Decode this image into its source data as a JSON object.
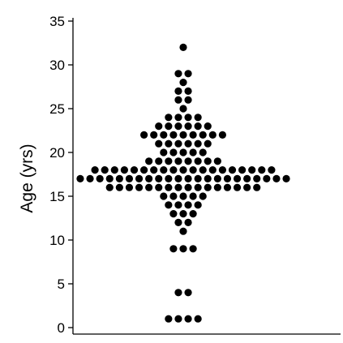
{
  "chart_data": {
    "type": "scatter",
    "style": "dot-plot",
    "title": "",
    "xlabel": "",
    "ylabel": "Age (yrs)",
    "ylim": [
      0,
      35
    ],
    "yticks": [
      0,
      5,
      10,
      15,
      20,
      25,
      30,
      35
    ],
    "grid": false,
    "legend": "none",
    "dot_color": "#000000",
    "value_counts": [
      {
        "age": 1,
        "count": 4
      },
      {
        "age": 4,
        "count": 2
      },
      {
        "age": 9,
        "count": 3
      },
      {
        "age": 11,
        "count": 1
      },
      {
        "age": 12,
        "count": 2
      },
      {
        "age": 13,
        "count": 3
      },
      {
        "age": 14,
        "count": 4
      },
      {
        "age": 15,
        "count": 5
      },
      {
        "age": 16,
        "count": 16
      },
      {
        "age": 17,
        "count": 22
      },
      {
        "age": 18,
        "count": 19
      },
      {
        "age": 19,
        "count": 8
      },
      {
        "age": 20,
        "count": 5
      },
      {
        "age": 21,
        "count": 6
      },
      {
        "age": 22,
        "count": 9
      },
      {
        "age": 23,
        "count": 6
      },
      {
        "age": 24,
        "count": 4
      },
      {
        "age": 25,
        "count": 1
      },
      {
        "age": 26,
        "count": 2
      },
      {
        "age": 27,
        "count": 2
      },
      {
        "age": 28,
        "count": 1
      },
      {
        "age": 29,
        "count": 2
      },
      {
        "age": 32,
        "count": 1
      }
    ]
  }
}
